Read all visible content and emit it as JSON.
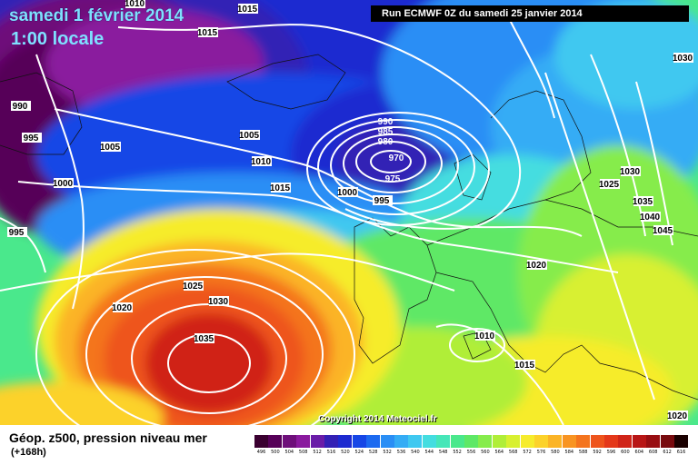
{
  "header": {
    "title": "samedi 1 février 2014",
    "subtitle": "1:00 locale",
    "run": "Run ECMWF 0Z du samedi 25 janvier 2014"
  },
  "copyright": "Copyright 2014 Meteociel.fr",
  "footer": {
    "label": "Géop. z500, pression niveau mer",
    "sublabel": "(+168h)"
  },
  "scale": {
    "values": [
      "496",
      "500",
      "504",
      "508",
      "512",
      "516",
      "520",
      "524",
      "528",
      "532",
      "536",
      "540",
      "544",
      "548",
      "552",
      "556",
      "560",
      "564",
      "568",
      "572",
      "576",
      "580",
      "584",
      "588",
      "592",
      "596",
      "600",
      "604",
      "608",
      "612",
      "616"
    ],
    "colors": [
      "#3a0030",
      "#560058",
      "#6e0f7a",
      "#8a1a9e",
      "#6a1ca8",
      "#3320b5",
      "#1d2ad0",
      "#1646e6",
      "#1c6af0",
      "#2a8ef5",
      "#34acf5",
      "#3fc8f0",
      "#44dde0",
      "#46e6b8",
      "#4ae88c",
      "#5ee866",
      "#86ec4c",
      "#b0ee38",
      "#d8f030",
      "#f6ec2c",
      "#fcd22a",
      "#fbb426",
      "#f89422",
      "#f4741e",
      "#ee541c",
      "#e4381a",
      "#d02418",
      "#b81616",
      "#980e12",
      "#780a0e",
      "#1a0000"
    ]
  },
  "pressure_labels": [
    "1015",
    "1010",
    "1015",
    "990",
    "995",
    "1005",
    "1000",
    "995",
    "1005",
    "1010",
    "1015",
    "990",
    "985",
    "980",
    "970",
    "975",
    "1000",
    "995",
    "1030",
    "1030",
    "1025",
    "1035",
    "1040",
    "1045",
    "1020",
    "1025",
    "1030",
    "1020",
    "1035",
    "1010",
    "1015",
    "1020"
  ]
}
